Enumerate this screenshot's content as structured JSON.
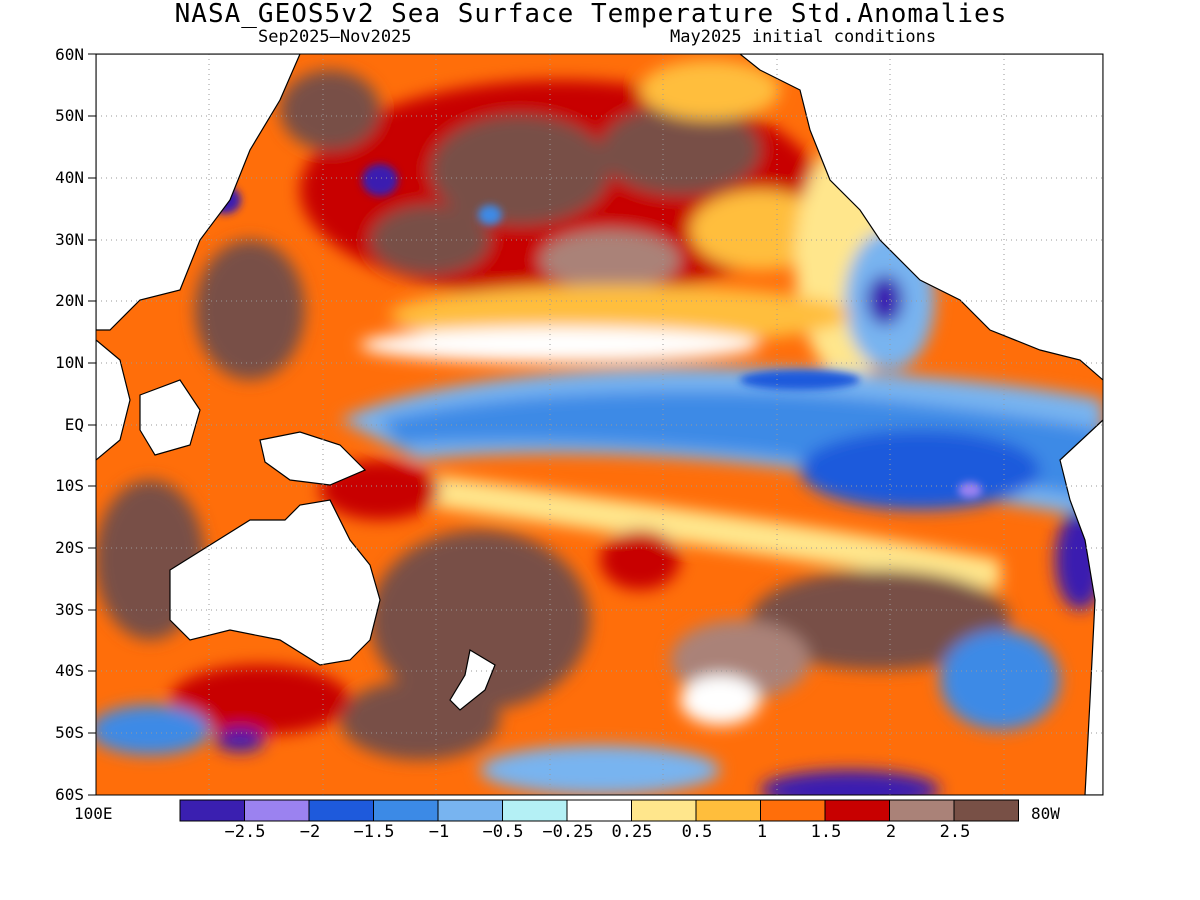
{
  "title": "NASA_GEOS5v2 Sea Surface Temperature Std.Anomalies",
  "subtitle_left": "Sep2025–Nov2025",
  "subtitle_right": "May2025 initial conditions",
  "lat_labels": [
    "60N",
    "50N",
    "40N",
    "30N",
    "20N",
    "10N",
    "EQ",
    "10S",
    "20S",
    "30S",
    "40S",
    "50S",
    "60S"
  ],
  "lon_left": "100E",
  "lon_right": "80W",
  "colorbar": {
    "colors": [
      "#3a1fb0",
      "#9b82f0",
      "#1e5adc",
      "#3c8ae6",
      "#78b4f0",
      "#b4f0f5",
      "#ffffff",
      "#ffe68c",
      "#ffbe3c",
      "#ff6e0a",
      "#c80000",
      "#aa8278",
      "#785046"
    ],
    "tick_labels": [
      "−2.5",
      "−2",
      "−1.5",
      "−1",
      "−0.5",
      "−0.25",
      "0.25",
      "0.5",
      "1",
      "1.5",
      "2",
      "2.5"
    ]
  },
  "colors": {
    "land": "#ffffff",
    "coast": "#000000",
    "grid": "#9a9a9a"
  }
}
